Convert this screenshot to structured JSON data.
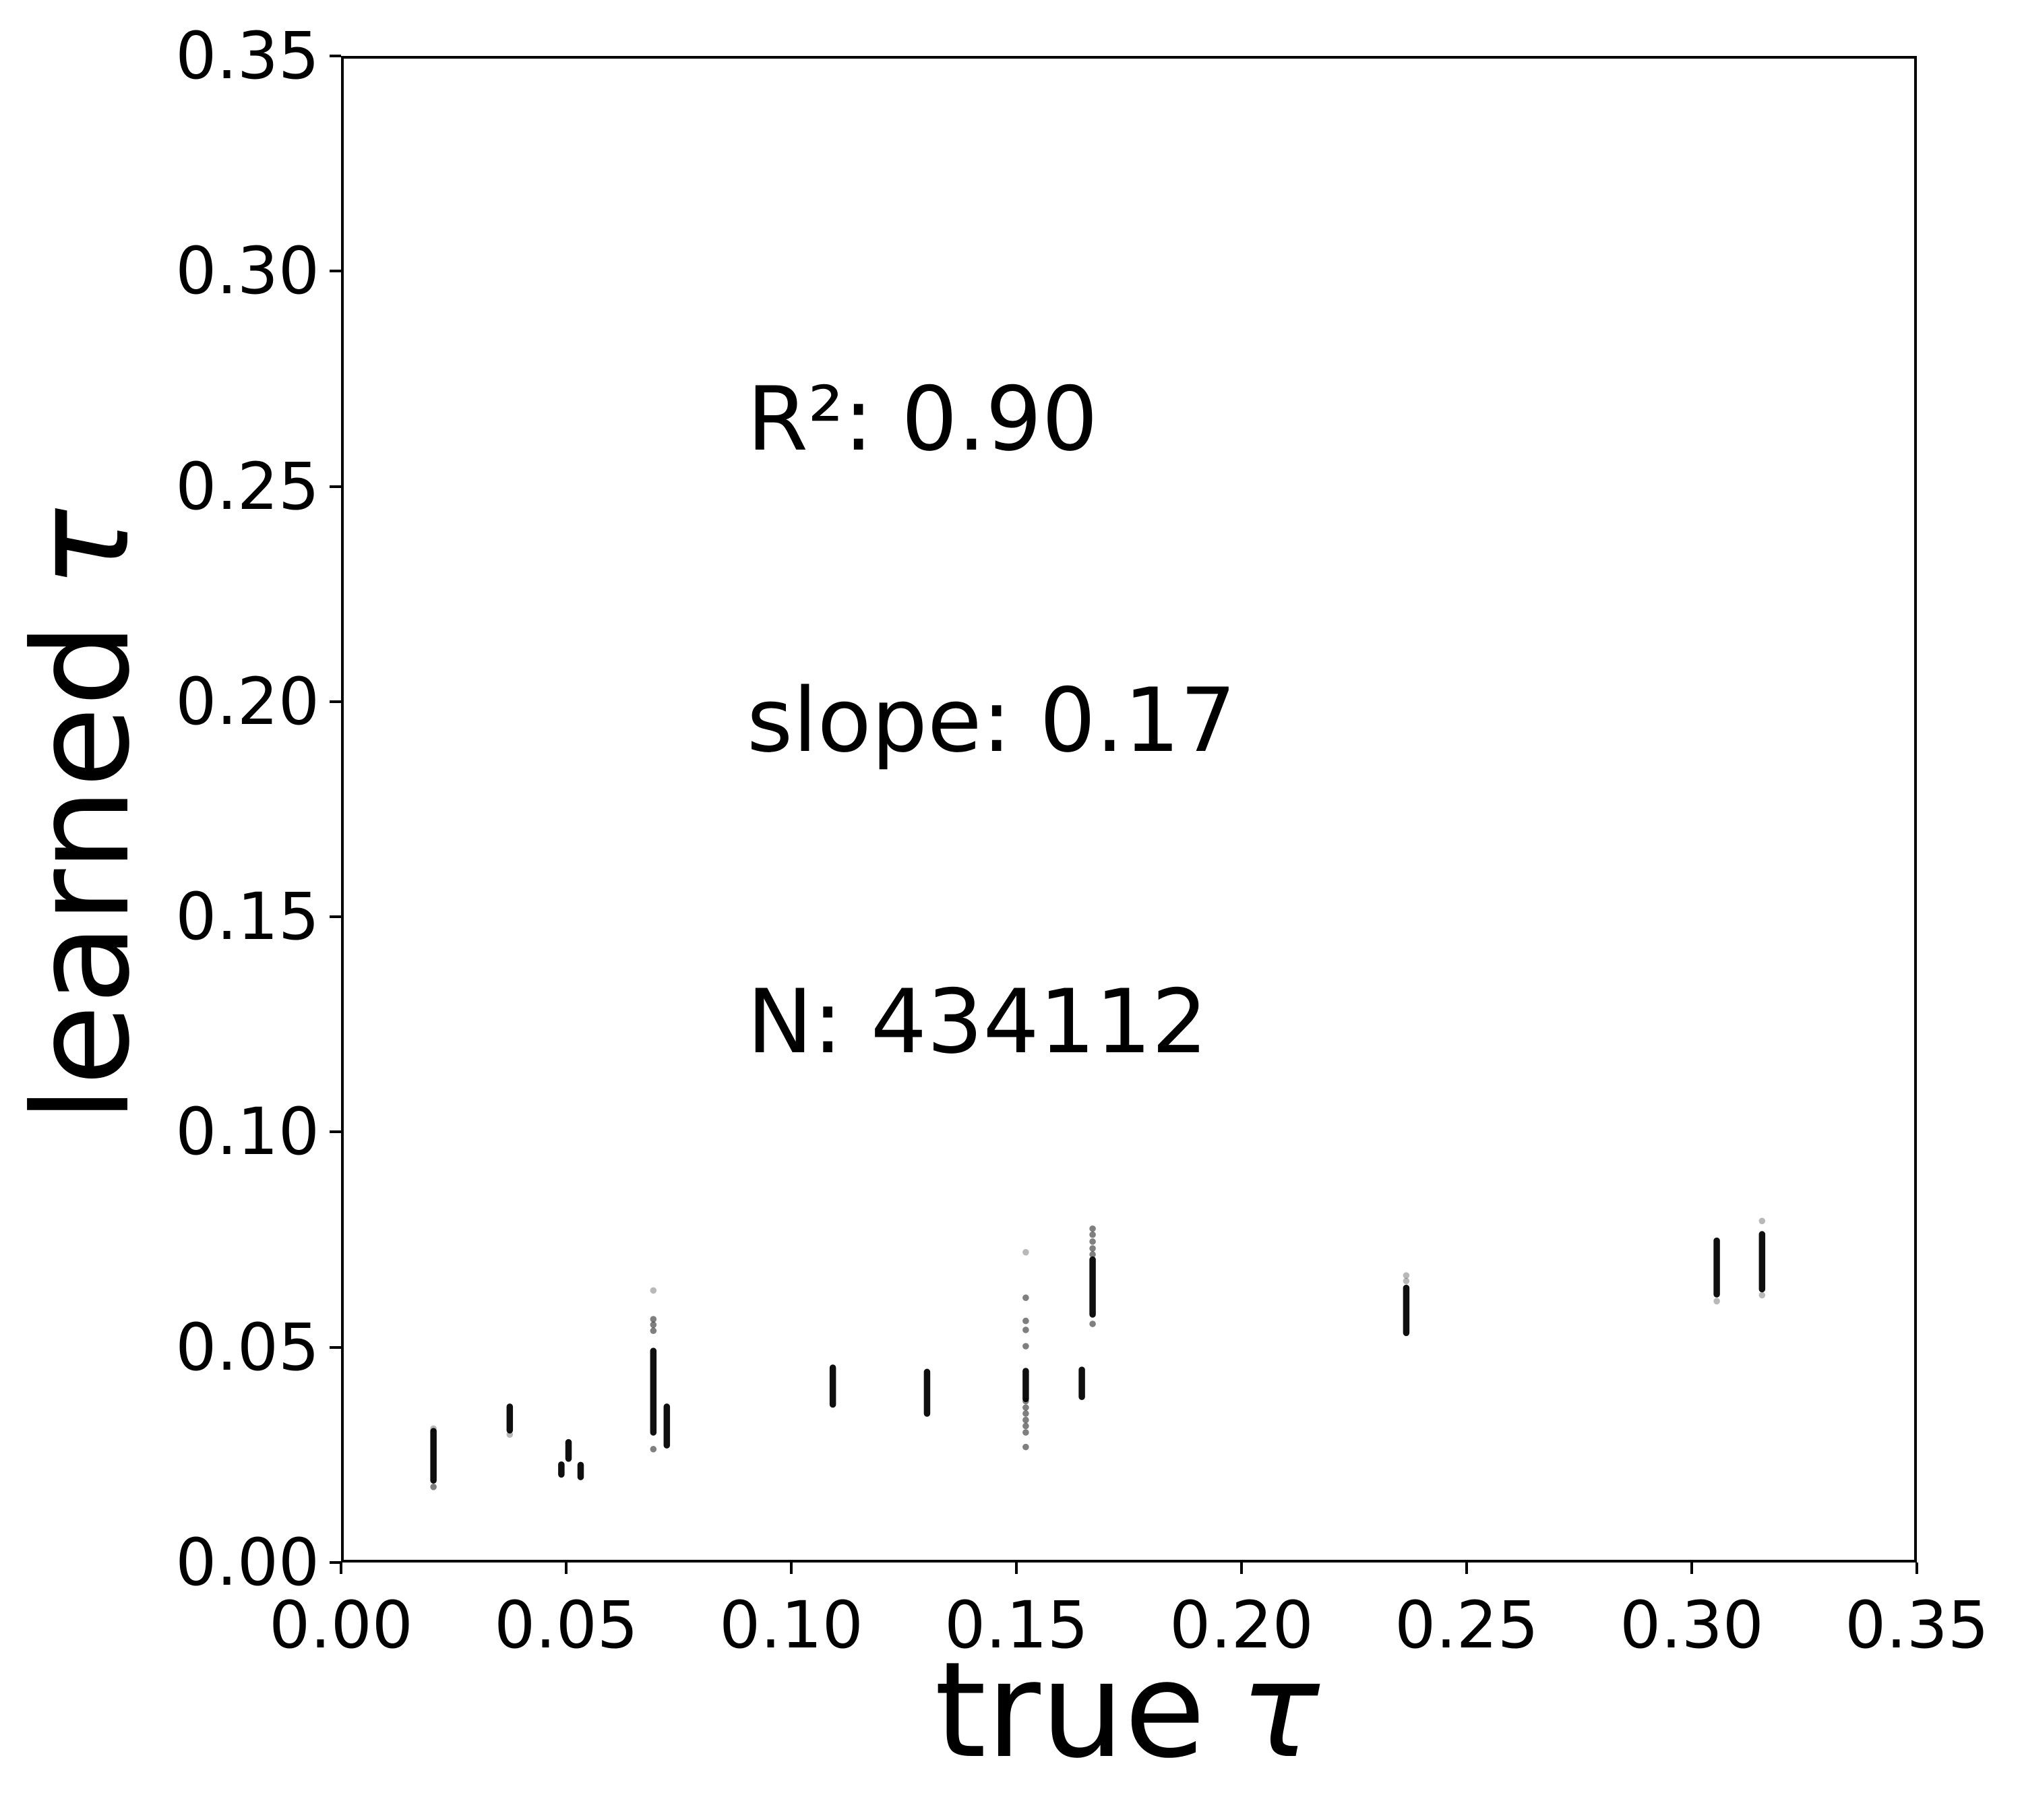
{
  "figure": {
    "annotation_lines": [
      "R²: 0.90",
      "slope: 0.17",
      "N: 434112"
    ],
    "x_axis": {
      "label_prefix": "true",
      "label_symbol": "τ"
    },
    "y_axis": {
      "label_prefix": "learned",
      "label_symbol": "τ"
    }
  },
  "chart_data": {
    "type": "scatter",
    "title": "",
    "xlabel": "true τ",
    "ylabel": "learned τ",
    "xlim": [
      0.0,
      0.35
    ],
    "ylim": [
      0.0,
      0.35
    ],
    "grid": false,
    "legend": "none",
    "marker_color": "#000000",
    "annotations": [
      "R²: 0.90",
      "slope: 0.17",
      "N: 434112"
    ],
    "stats": {
      "r_squared": 0.9,
      "slope": 0.17,
      "n": 434112
    },
    "ticks": {
      "values": [
        0.0,
        0.05,
        0.1,
        0.15,
        0.2,
        0.25,
        0.3,
        0.35
      ],
      "labels": [
        "0.00",
        "0.05",
        "0.10",
        "0.15",
        "0.20",
        "0.25",
        "0.30",
        "0.35"
      ]
    },
    "clusters": [
      {
        "true_tau": 0.02,
        "bars": [
          [
            0.0185,
            0.03
          ]
        ],
        "dots": [
          0.017
        ],
        "faint_dots": [
          0.0306
        ]
      },
      {
        "true_tau": 0.037,
        "bars": [
          [
            0.0302,
            0.0357
          ]
        ],
        "dots": [],
        "faint_dots": [
          0.0292
        ]
      },
      {
        "true_tau": 0.0485,
        "bars": [
          [
            0.0199,
            0.0222
          ]
        ],
        "dots": [],
        "faint_dots": []
      },
      {
        "true_tau": 0.0501,
        "bars": [
          [
            0.0236,
            0.0274
          ]
        ],
        "dots": [],
        "faint_dots": []
      },
      {
        "true_tau": 0.0528,
        "bars": [
          [
            0.0193,
            0.0221
          ]
        ],
        "dots": [],
        "faint_dots": []
      },
      {
        "true_tau": 0.069,
        "bars": [
          [
            0.0297,
            0.0487
          ]
        ],
        "dots": [
          0.0258,
          0.0534,
          0.0548,
          0.0561
        ],
        "faint_dots": [
          0.0628
        ]
      },
      {
        "true_tau": 0.072,
        "bars": [
          [
            0.0267,
            0.0357
          ]
        ],
        "dots": [],
        "faint_dots": []
      },
      {
        "true_tau": 0.109,
        "bars": [
          [
            0.0362,
            0.0448
          ]
        ],
        "dots": [],
        "faint_dots": []
      },
      {
        "true_tau": 0.13,
        "bars": [
          [
            0.0341,
            0.0438
          ]
        ],
        "dots": [],
        "faint_dots": []
      },
      {
        "true_tau": 0.152,
        "bars": [
          [
            0.0375,
            0.044
          ]
        ],
        "dots": [
          0.0263,
          0.0297,
          0.0312,
          0.0326,
          0.0341,
          0.0355,
          0.037,
          0.0498,
          0.0536,
          0.0557,
          0.0611
        ],
        "faint_dots": [
          0.0717
        ]
      },
      {
        "true_tau": 0.1645,
        "bars": [
          [
            0.038,
            0.0443
          ]
        ],
        "dots": [],
        "faint_dots": []
      },
      {
        "true_tau": 0.1669,
        "bars": [
          [
            0.0572,
            0.07
          ]
        ],
        "dots": [
          0.055,
          0.0712,
          0.0726,
          0.0742,
          0.0758,
          0.0772
        ],
        "faint_dots": []
      },
      {
        "true_tau": 0.2368,
        "bars": [
          [
            0.0529,
            0.0634
          ]
        ],
        "dots": [],
        "faint_dots": [
          0.065,
          0.0663
        ]
      },
      {
        "true_tau": 0.306,
        "bars": [
          [
            0.0619,
            0.0744
          ]
        ],
        "dots": [],
        "faint_dots": [
          0.0603
        ]
      },
      {
        "true_tau": 0.3161,
        "bars": [
          [
            0.0631,
            0.0759
          ]
        ],
        "dots": [],
        "faint_dots": [
          0.0617,
          0.079
        ]
      }
    ]
  }
}
